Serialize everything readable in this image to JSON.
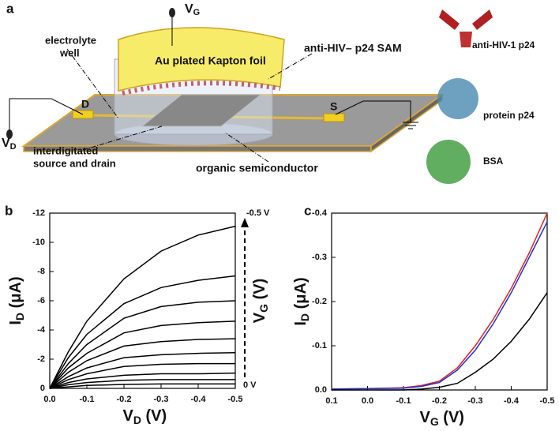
{
  "diagram": {
    "panel": "a",
    "vg": [
      "V",
      "G"
    ],
    "vd": [
      "V",
      "D"
    ],
    "electrolyte": [
      "electrolyte",
      "well"
    ],
    "sam": "anti-HIV– p24 SAM",
    "foil": "Au plated Kapton foil",
    "drain": "D",
    "source": "S",
    "interdigitated": [
      "interdigitated",
      "source and drain"
    ],
    "semiconductor": "organic semiconductor",
    "legend": [
      "anti-HIV-1 p24",
      "protein p24",
      "BSA"
    ]
  },
  "chart_data": [
    {
      "type": "line",
      "panel": "b",
      "xlabel": [
        "V",
        "D",
        " (V)"
      ],
      "ylabel": [
        "I",
        "D",
        " (μA)"
      ],
      "vg_label": [
        "V",
        "G",
        " (V)"
      ],
      "vg_top": "-0.5 V",
      "vg_bottom": "0 V",
      "xlim": [
        0,
        -0.5
      ],
      "xticks": [
        {
          "value": 0,
          "label": "0.0"
        },
        -0.1,
        -0.2,
        -0.3,
        -0.4,
        -0.5
      ],
      "ylim": [
        0,
        -12
      ],
      "yticks": [
        0,
        -2,
        -4,
        -6,
        -8,
        -10,
        -12
      ],
      "x": [
        0,
        -0.05,
        -0.1,
        -0.2,
        -0.3,
        -0.4,
        -0.5
      ],
      "series": [
        {
          "color": "#000000",
          "values": [
            0,
            -2.5,
            -4.6,
            -7.5,
            -9.4,
            -10.5,
            -11.1
          ]
        },
        {
          "color": "#000000",
          "values": [
            0,
            -2.1,
            -3.7,
            -5.8,
            -6.9,
            -7.4,
            -7.7
          ]
        },
        {
          "color": "#000000",
          "values": [
            0,
            -1.7,
            -3.0,
            -4.8,
            -5.6,
            -5.9,
            -6.0
          ]
        },
        {
          "color": "#000000",
          "values": [
            0,
            -1.4,
            -2.4,
            -3.8,
            -4.3,
            -4.5,
            -4.6
          ]
        },
        {
          "color": "#000000",
          "values": [
            0,
            -1.1,
            -1.9,
            -2.9,
            -3.2,
            -3.35,
            -3.4
          ]
        },
        {
          "color": "#000000",
          "values": [
            0,
            -0.8,
            -1.4,
            -2.1,
            -2.3,
            -2.4,
            -2.45
          ]
        },
        {
          "color": "#000000",
          "values": [
            0,
            -0.6,
            -1.0,
            -1.5,
            -1.65,
            -1.7,
            -1.7
          ]
        },
        {
          "color": "#000000",
          "values": [
            0,
            -0.4,
            -0.65,
            -0.9,
            -1.0,
            -1.0,
            -1.05
          ]
        },
        {
          "color": "#000000",
          "values": [
            0,
            -0.25,
            -0.4,
            -0.55,
            -0.6,
            -0.6,
            -0.6
          ]
        },
        {
          "color": "#000000",
          "values": [
            0,
            -0.1,
            -0.2,
            -0.27,
            -0.3,
            -0.3,
            -0.3
          ]
        }
      ]
    },
    {
      "type": "line",
      "panel": "c",
      "xlabel": [
        "V",
        "G",
        " (V)"
      ],
      "ylabel": [
        "I",
        "D",
        " (μA)"
      ],
      "xlim": [
        0.1,
        -0.5
      ],
      "xticks": [
        0.1,
        {
          "value": 0,
          "label": "0.0"
        },
        -0.1,
        -0.2,
        -0.3,
        -0.4,
        -0.5
      ],
      "ylim": [
        0,
        -0.4
      ],
      "yticks": [
        {
          "value": 0,
          "label": "0.0"
        },
        -0.1,
        -0.2,
        -0.3,
        -0.4
      ],
      "x": [
        0.1,
        0,
        -0.1,
        -0.15,
        -0.2,
        -0.25,
        -0.3,
        -0.35,
        -0.4,
        -0.45,
        -0.5
      ],
      "series": [
        {
          "color": "#e02020",
          "values": [
            -0.002,
            -0.003,
            -0.005,
            -0.01,
            -0.02,
            -0.05,
            -0.1,
            -0.16,
            -0.23,
            -0.31,
            -0.4
          ]
        },
        {
          "color": "#2030d0",
          "values": [
            -0.002,
            -0.003,
            -0.004,
            -0.008,
            -0.017,
            -0.045,
            -0.09,
            -0.15,
            -0.22,
            -0.3,
            -0.38
          ]
        },
        {
          "color": "#000000",
          "values": [
            0,
            0,
            0,
            -0.002,
            -0.006,
            -0.015,
            -0.04,
            -0.07,
            -0.11,
            -0.16,
            -0.22
          ]
        }
      ]
    }
  ]
}
